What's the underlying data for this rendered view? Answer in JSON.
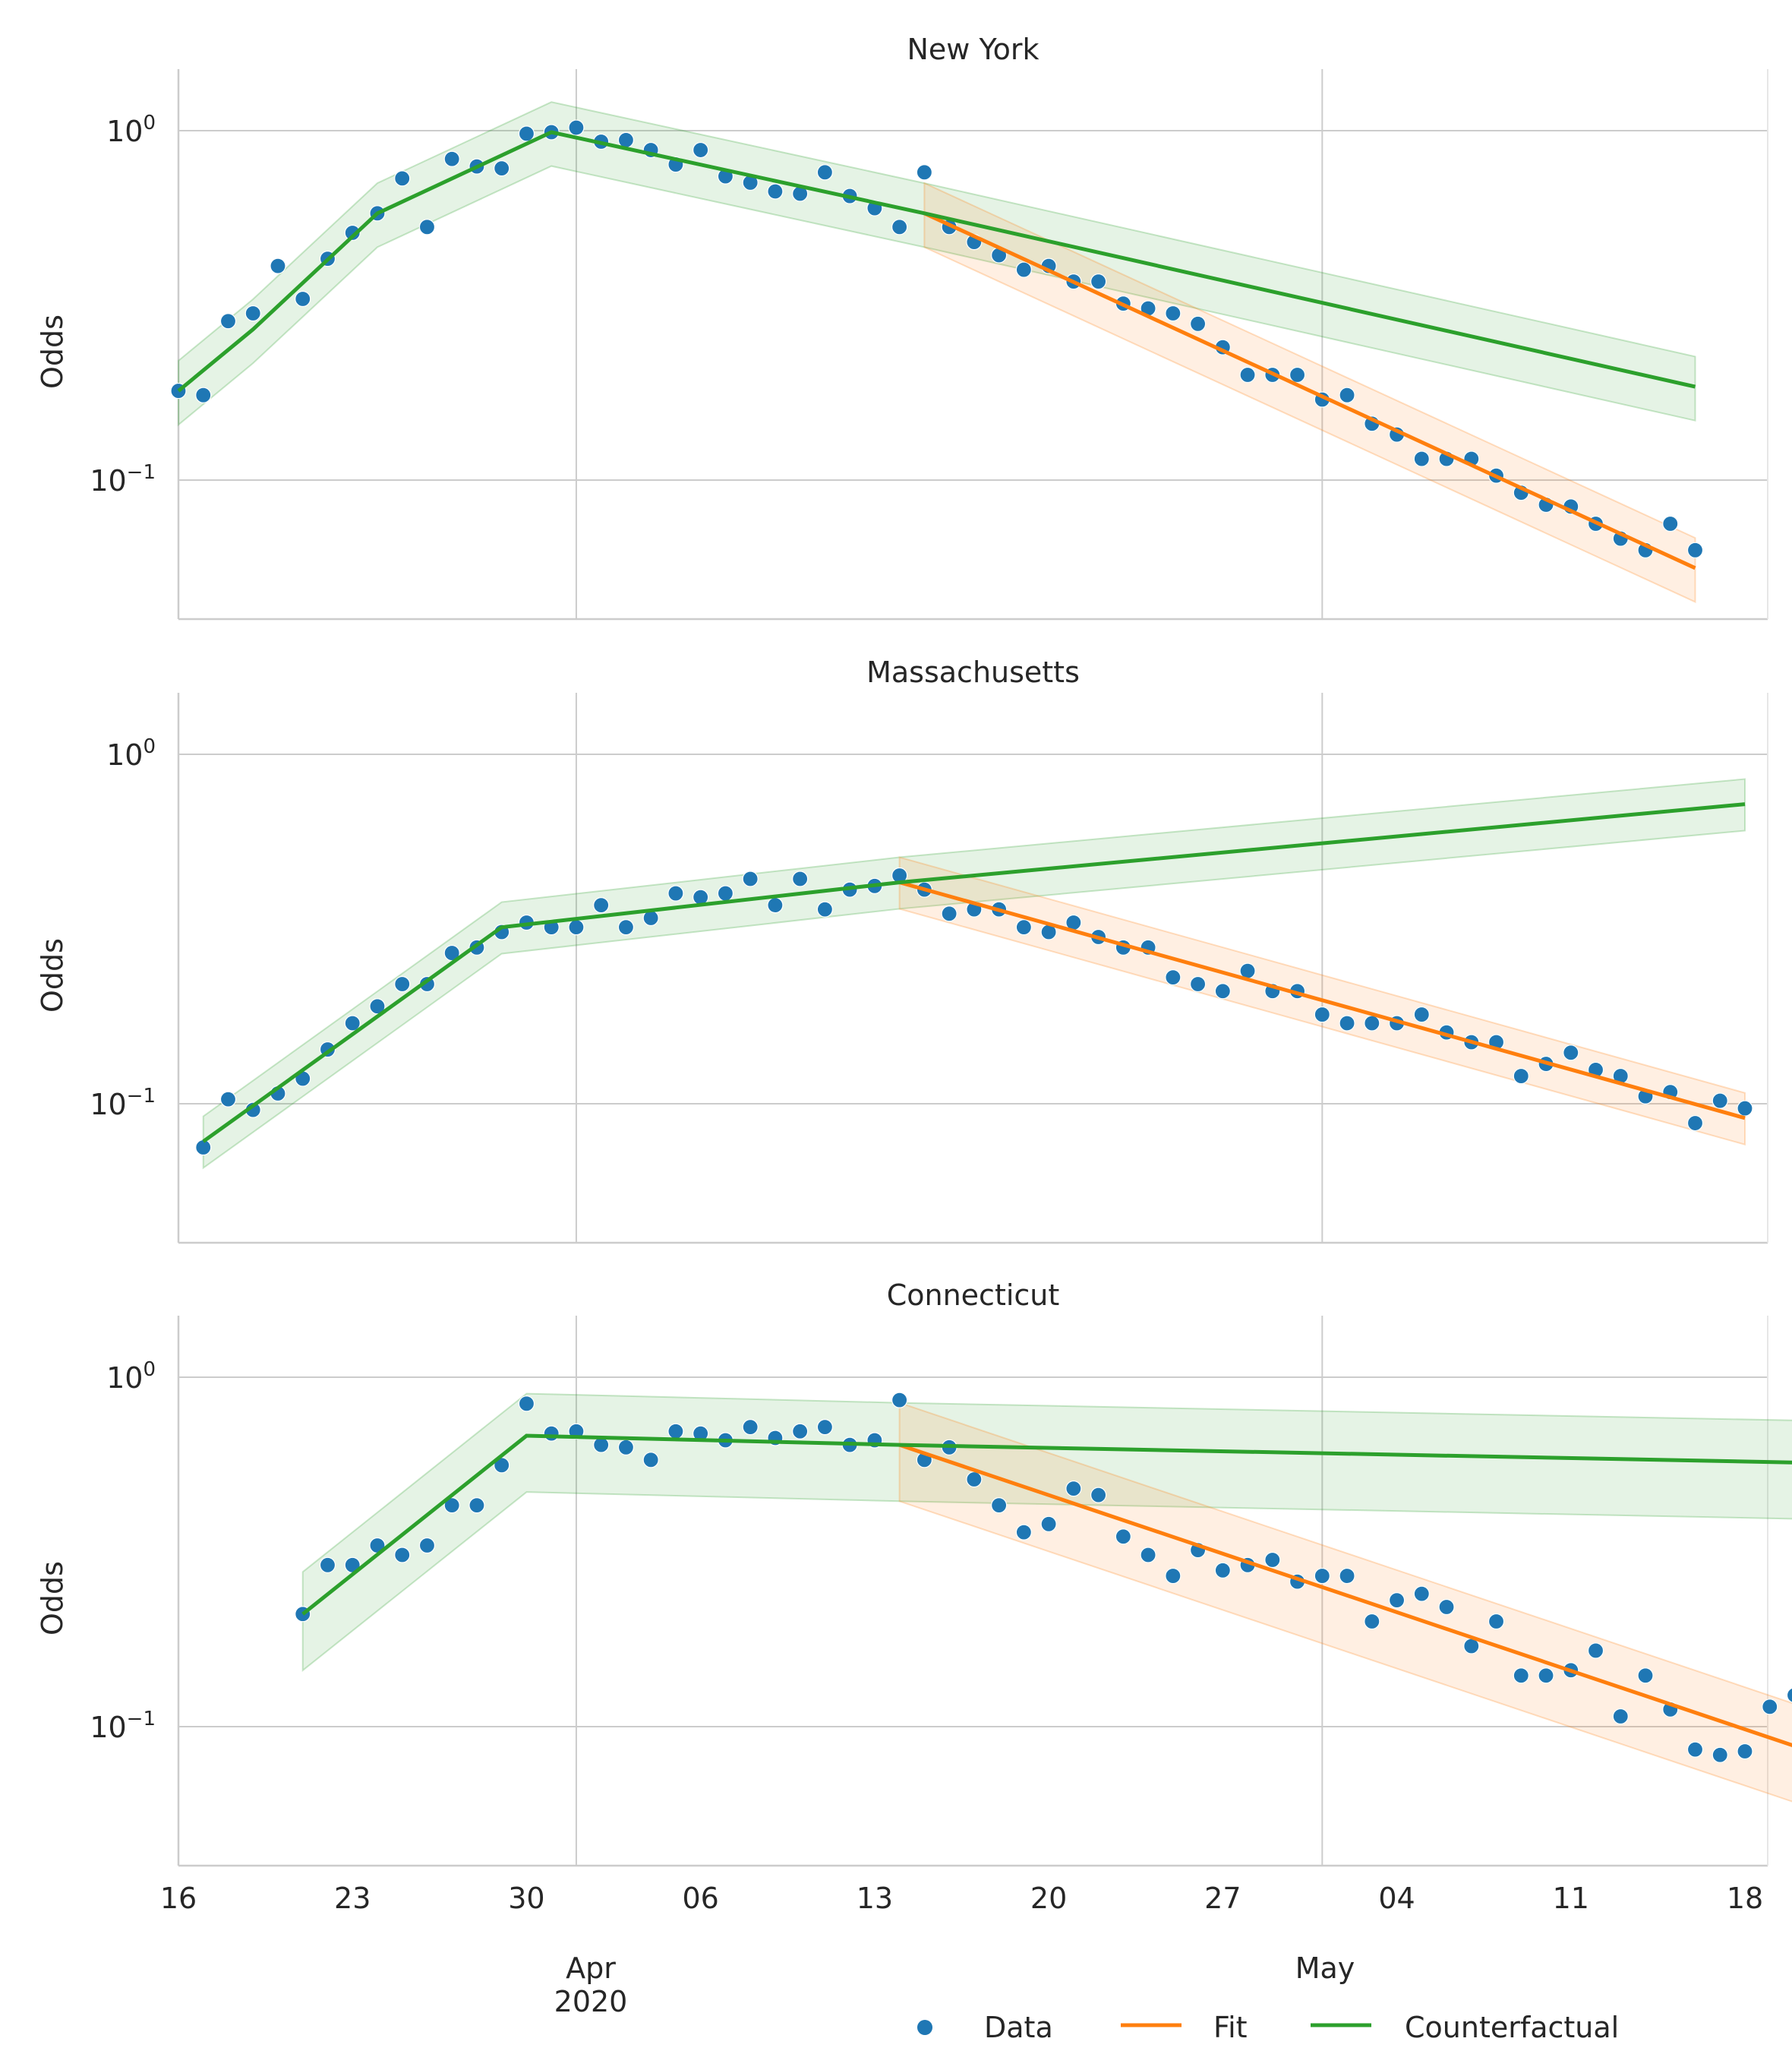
{
  "chart_data": {
    "type": "scatter",
    "x_axis": {
      "start_date": "2020-03-16",
      "end_date": "2020-05-18",
      "tick_labels": [
        "16",
        "23",
        "30",
        "06",
        "13",
        "20",
        "27",
        "04",
        "11",
        "18"
      ],
      "tick_days": [
        0,
        7,
        14,
        21,
        28,
        35,
        42,
        49,
        56,
        63
      ],
      "month_labels": [
        {
          "label": "Apr",
          "sublabel": "2020",
          "day": 16
        },
        {
          "label": "May",
          "sublabel": "",
          "day": 46
        }
      ],
      "grid_days": [
        16,
        46
      ]
    },
    "y_axis": {
      "scale": "log",
      "ylabel": "Odds",
      "ylim": [
        0.04,
        1.5
      ],
      "major_ticks": [
        {
          "label_base": "10",
          "label_exp": "0",
          "value": 1.0
        },
        {
          "label_base": "10",
          "label_exp": "−1",
          "value": 0.1
        }
      ]
    },
    "legend": {
      "placement": "bottom-right",
      "entries": [
        {
          "label": "Data",
          "kind": "point",
          "color": "#1f77b4"
        },
        {
          "label": "Fit",
          "kind": "line",
          "color": "#ff7f0e"
        },
        {
          "label": "Counterfactual",
          "kind": "line",
          "color": "#2ca02c"
        }
      ]
    },
    "panels": [
      {
        "title": "New York",
        "data": [
          [
            0,
            0.18
          ],
          [
            1,
            0.175
          ],
          [
            2,
            0.285
          ],
          [
            3,
            0.3
          ],
          [
            4,
            0.41
          ],
          [
            5,
            0.33
          ],
          [
            6,
            0.43
          ],
          [
            7,
            0.51
          ],
          [
            8,
            0.58
          ],
          [
            9,
            0.73
          ],
          [
            10,
            0.53
          ],
          [
            11,
            0.83
          ],
          [
            12,
            0.79
          ],
          [
            13,
            0.78
          ],
          [
            14,
            0.98
          ],
          [
            15,
            0.99
          ],
          [
            16,
            1.02
          ],
          [
            17,
            0.93
          ],
          [
            18,
            0.94
          ],
          [
            19,
            0.88
          ],
          [
            20,
            0.8
          ],
          [
            21,
            0.88
          ],
          [
            22,
            0.74
          ],
          [
            23,
            0.71
          ],
          [
            24,
            0.67
          ],
          [
            25,
            0.66
          ],
          [
            26,
            0.76
          ],
          [
            27,
            0.65
          ],
          [
            28,
            0.6
          ],
          [
            29,
            0.53
          ],
          [
            30,
            0.76
          ],
          [
            31,
            0.53
          ],
          [
            32,
            0.48
          ],
          [
            33,
            0.44
          ],
          [
            34,
            0.4
          ],
          [
            35,
            0.41
          ],
          [
            36,
            0.37
          ],
          [
            37,
            0.37
          ],
          [
            38,
            0.32
          ],
          [
            39,
            0.31
          ],
          [
            40,
            0.3
          ],
          [
            41,
            0.28
          ],
          [
            42,
            0.24
          ],
          [
            43,
            0.2
          ],
          [
            44,
            0.2
          ],
          [
            45,
            0.2
          ],
          [
            46,
            0.17
          ],
          [
            47,
            0.175
          ],
          [
            48,
            0.145
          ],
          [
            49,
            0.135
          ],
          [
            50,
            0.115
          ],
          [
            51,
            0.115
          ],
          [
            52,
            0.115
          ],
          [
            53,
            0.103
          ],
          [
            54,
            0.092
          ],
          [
            55,
            0.085
          ],
          [
            56,
            0.084
          ],
          [
            57,
            0.075
          ],
          [
            58,
            0.068
          ],
          [
            59,
            0.063
          ],
          [
            60,
            0.075
          ],
          [
            61,
            0.063
          ]
        ],
        "counterfactual": [
          [
            0,
            0.18
          ],
          [
            3,
            0.27
          ],
          [
            8,
            0.58
          ],
          [
            15,
            0.99
          ],
          [
            30,
            0.58
          ],
          [
            61,
            0.185
          ]
        ],
        "fit": [
          [
            30,
            0.58
          ],
          [
            61,
            0.056
          ]
        ],
        "band_lower": 0.8,
        "band_upper": 1.22
      },
      {
        "title": "Massachusetts",
        "data": [
          [
            1,
            0.075
          ],
          [
            2,
            0.103
          ],
          [
            3,
            0.096
          ],
          [
            4,
            0.107
          ],
          [
            5,
            0.118
          ],
          [
            6,
            0.143
          ],
          [
            7,
            0.17
          ],
          [
            8,
            0.19
          ],
          [
            9,
            0.22
          ],
          [
            10,
            0.22
          ],
          [
            11,
            0.27
          ],
          [
            12,
            0.28
          ],
          [
            13,
            0.31
          ],
          [
            14,
            0.33
          ],
          [
            15,
            0.32
          ],
          [
            16,
            0.32
          ],
          [
            17,
            0.37
          ],
          [
            18,
            0.32
          ],
          [
            19,
            0.34
          ],
          [
            20,
            0.4
          ],
          [
            21,
            0.39
          ],
          [
            22,
            0.4
          ],
          [
            23,
            0.44
          ],
          [
            24,
            0.37
          ],
          [
            25,
            0.44
          ],
          [
            26,
            0.36
          ],
          [
            27,
            0.41
          ],
          [
            28,
            0.42
          ],
          [
            29,
            0.45
          ],
          [
            30,
            0.41
          ],
          [
            31,
            0.35
          ],
          [
            32,
            0.36
          ],
          [
            33,
            0.36
          ],
          [
            34,
            0.32
          ],
          [
            35,
            0.31
          ],
          [
            36,
            0.33
          ],
          [
            37,
            0.3
          ],
          [
            38,
            0.28
          ],
          [
            39,
            0.28
          ],
          [
            40,
            0.23
          ],
          [
            41,
            0.22
          ],
          [
            42,
            0.21
          ],
          [
            43,
            0.24
          ],
          [
            44,
            0.21
          ],
          [
            45,
            0.21
          ],
          [
            46,
            0.18
          ],
          [
            47,
            0.17
          ],
          [
            48,
            0.17
          ],
          [
            49,
            0.17
          ],
          [
            50,
            0.18
          ],
          [
            51,
            0.16
          ],
          [
            52,
            0.15
          ],
          [
            53,
            0.15
          ],
          [
            54,
            0.12
          ],
          [
            55,
            0.13
          ],
          [
            56,
            0.14
          ],
          [
            57,
            0.125
          ],
          [
            58,
            0.12
          ],
          [
            59,
            0.105
          ],
          [
            60,
            0.108
          ],
          [
            61,
            0.088
          ],
          [
            62,
            0.102
          ],
          [
            63,
            0.097
          ]
        ],
        "counterfactual": [
          [
            1,
            0.078
          ],
          [
            13,
            0.32
          ],
          [
            29,
            0.43
          ],
          [
            63,
            0.72
          ]
        ],
        "fit": [
          [
            29,
            0.43
          ],
          [
            63,
            0.091
          ]
        ],
        "band_lower": 0.84,
        "band_upper": 1.18
      },
      {
        "title": "Connecticut",
        "data": [
          [
            5,
            0.21
          ],
          [
            6,
            0.29
          ],
          [
            7,
            0.29
          ],
          [
            8,
            0.33
          ],
          [
            9,
            0.31
          ],
          [
            10,
            0.33
          ],
          [
            11,
            0.43
          ],
          [
            12,
            0.43
          ],
          [
            13,
            0.56
          ],
          [
            14,
            0.84
          ],
          [
            15,
            0.69
          ],
          [
            16,
            0.7
          ],
          [
            17,
            0.64
          ],
          [
            18,
            0.63
          ],
          [
            19,
            0.58
          ],
          [
            20,
            0.7
          ],
          [
            21,
            0.69
          ],
          [
            22,
            0.66
          ],
          [
            23,
            0.72
          ],
          [
            24,
            0.67
          ],
          [
            25,
            0.7
          ],
          [
            26,
            0.72
          ],
          [
            27,
            0.64
          ],
          [
            28,
            0.66
          ],
          [
            29,
            0.86
          ],
          [
            30,
            0.58
          ],
          [
            31,
            0.63
          ],
          [
            32,
            0.51
          ],
          [
            33,
            0.43
          ],
          [
            34,
            0.36
          ],
          [
            35,
            0.38
          ],
          [
            36,
            0.48
          ],
          [
            37,
            0.46
          ],
          [
            38,
            0.35
          ],
          [
            39,
            0.31
          ],
          [
            40,
            0.27
          ],
          [
            41,
            0.32
          ],
          [
            42,
            0.28
          ],
          [
            43,
            0.29
          ],
          [
            44,
            0.3
          ],
          [
            45,
            0.26
          ],
          [
            46,
            0.27
          ],
          [
            47,
            0.27
          ],
          [
            48,
            0.2
          ],
          [
            49,
            0.23
          ],
          [
            50,
            0.24
          ],
          [
            51,
            0.22
          ],
          [
            52,
            0.17
          ],
          [
            53,
            0.2
          ],
          [
            54,
            0.14
          ],
          [
            55,
            0.14
          ],
          [
            56,
            0.145
          ],
          [
            57,
            0.165
          ],
          [
            58,
            0.107
          ],
          [
            59,
            0.14
          ],
          [
            60,
            0.112
          ],
          [
            61,
            0.086
          ],
          [
            62,
            0.083
          ],
          [
            63,
            0.085
          ],
          [
            64,
            0.114
          ],
          [
            65,
            0.123
          ]
        ],
        "counterfactual": [
          [
            5,
            0.21
          ],
          [
            14,
            0.68
          ],
          [
            29,
            0.64
          ],
          [
            65,
            0.57
          ]
        ],
        "fit": [
          [
            29,
            0.64
          ],
          [
            65,
            0.088
          ]
        ],
        "band_lower": 0.69,
        "band_upper": 1.32
      }
    ]
  }
}
